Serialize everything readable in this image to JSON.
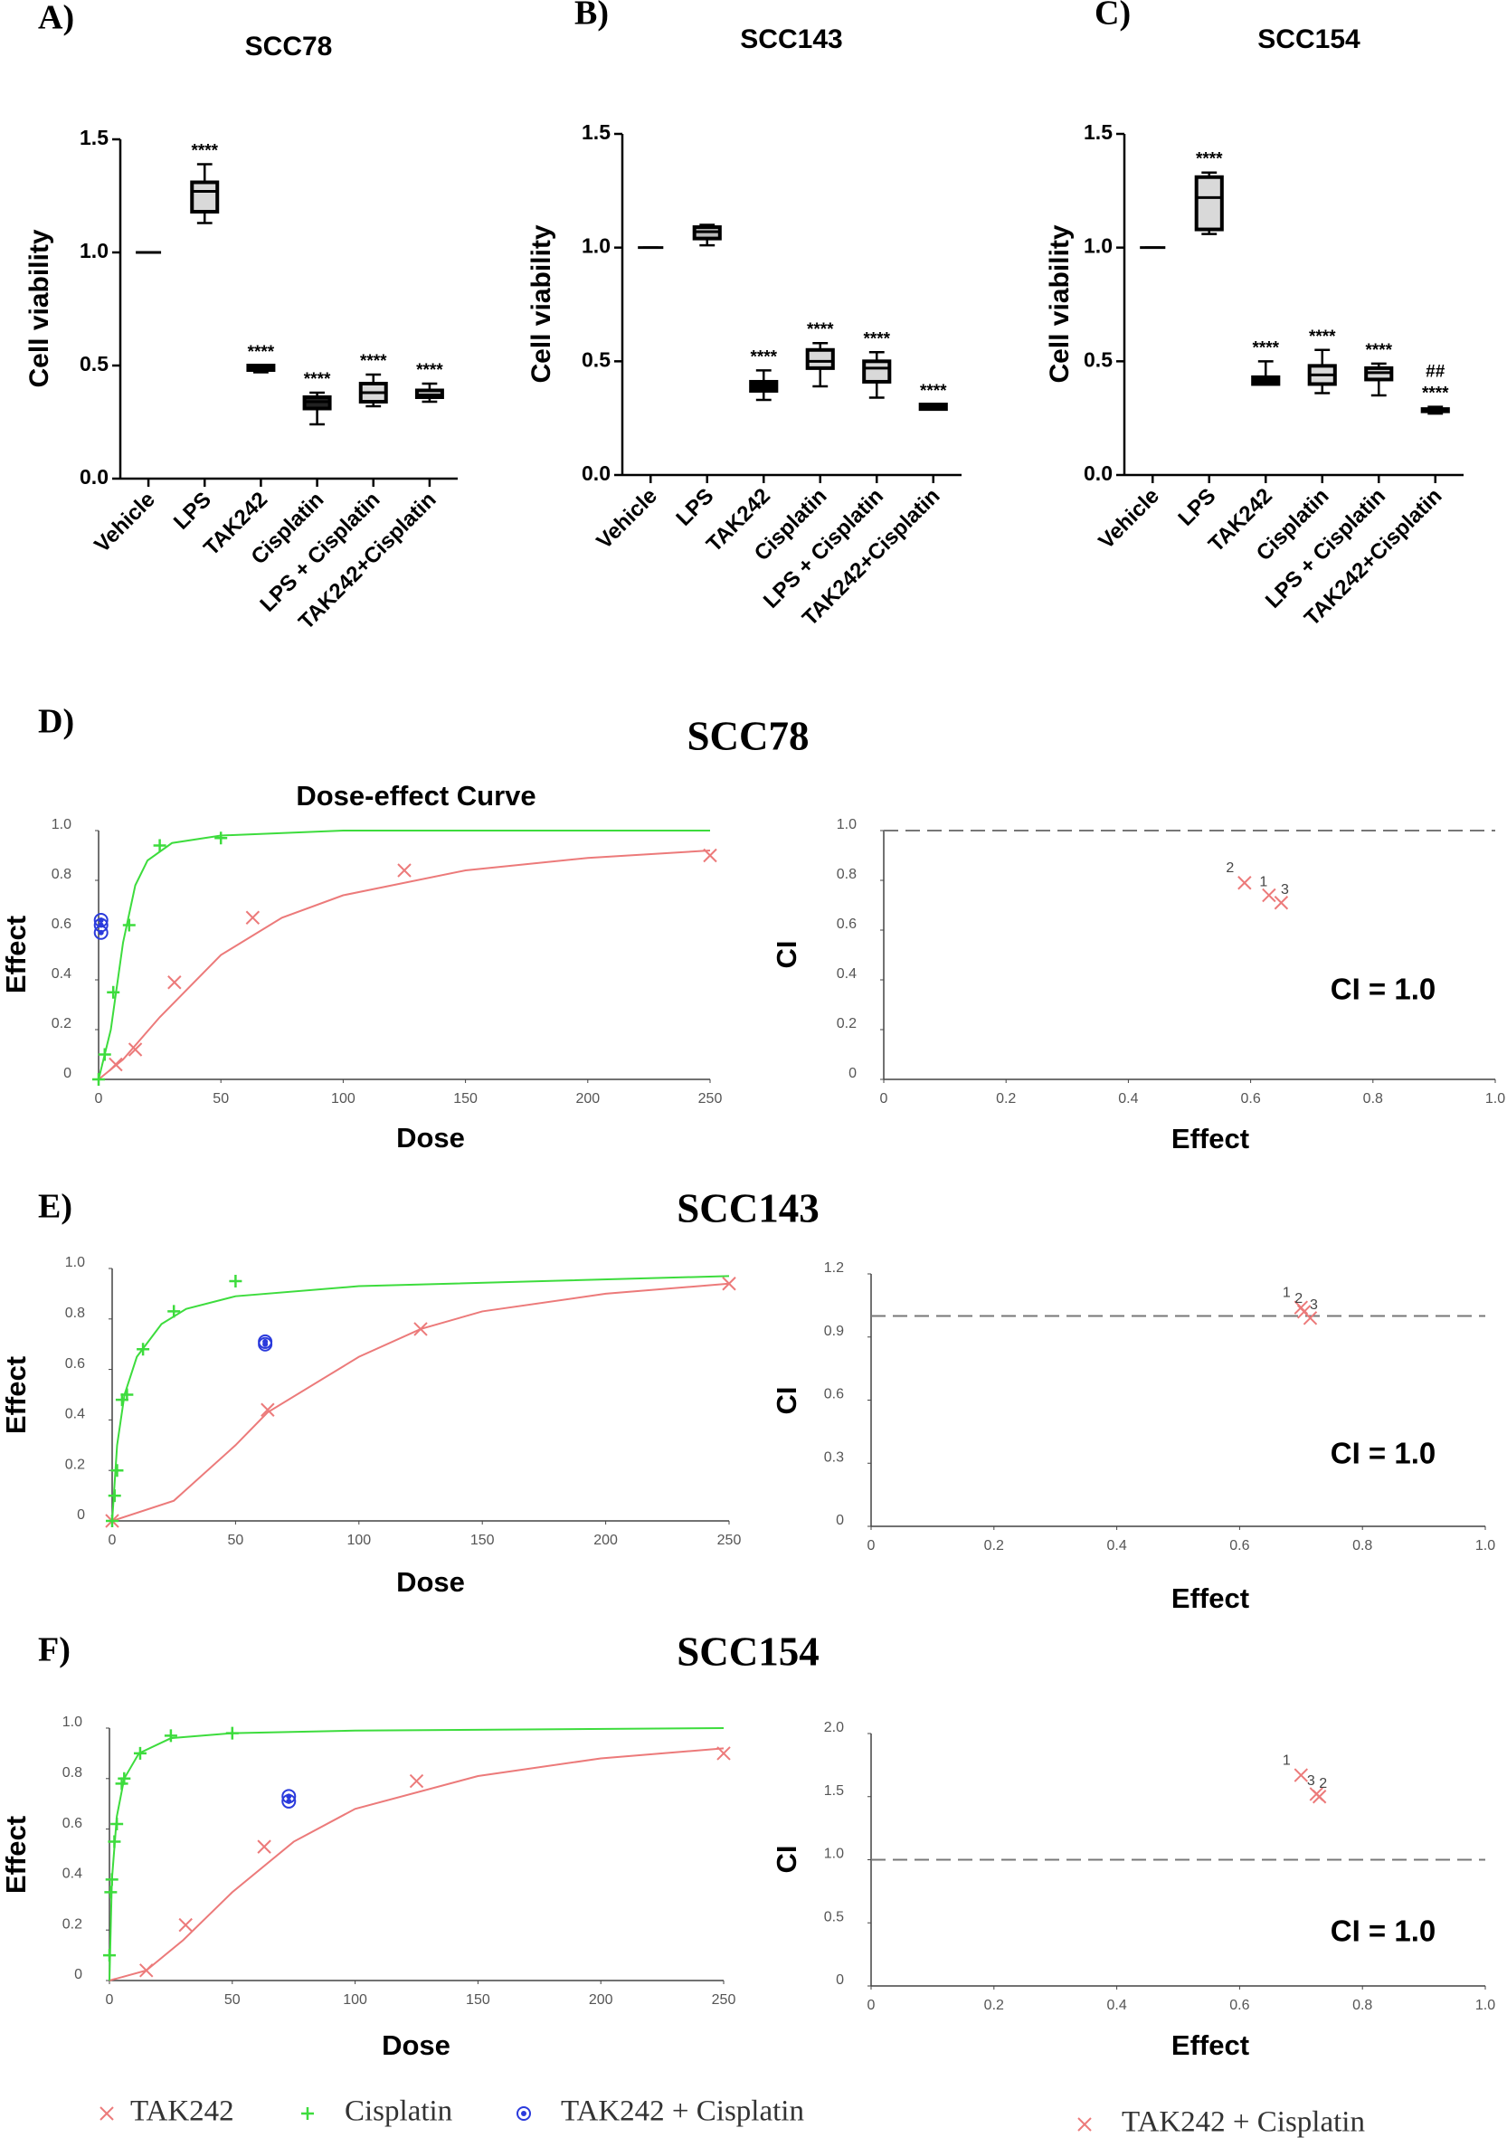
{
  "chart_data": [
    {
      "type": "box",
      "panel": "A)",
      "title": "SCC78",
      "y_label": "Cell viability",
      "categories": [
        "Vehicle",
        "LPS",
        "TAK242",
        "Cisplatin",
        "LPS + Cisplatin",
        "TAK242+Cisplatin"
      ],
      "min": [
        1.0,
        1.13,
        0.47,
        0.24,
        0.32,
        0.34
      ],
      "q1": [
        1.0,
        1.18,
        0.48,
        0.31,
        0.34,
        0.36
      ],
      "median": [
        1.0,
        1.27,
        0.49,
        0.34,
        0.38,
        0.37
      ],
      "q3": [
        1.0,
        1.31,
        0.5,
        0.36,
        0.42,
        0.39
      ],
      "max": [
        1.0,
        1.39,
        0.5,
        0.38,
        0.46,
        0.42
      ],
      "colors": [
        "#000000",
        "#d9d9d9",
        "#000000",
        "#222222",
        "#d9d9d9",
        "#d9d9d9"
      ],
      "annotations": [
        null,
        [
          "****"
        ],
        [
          "****"
        ],
        [
          "****"
        ],
        [
          "****"
        ],
        [
          "****"
        ]
      ],
      "ylim": [
        0,
        1.5
      ],
      "yticks": [
        {
          "value": 0,
          "label": "0.0"
        },
        0.5,
        {
          "value": 1,
          "label": "1.0"
        },
        1.5
      ]
    },
    {
      "type": "box",
      "panel": "B)",
      "title": "SCC143",
      "y_label": "Cell viability",
      "categories": [
        "Vehicle",
        "LPS",
        "TAK242",
        "Cisplatin",
        "LPS + Cisplatin",
        "TAK242+Cisplatin"
      ],
      "min": [
        1.0,
        1.01,
        0.33,
        0.39,
        0.34,
        0.29
      ],
      "q1": [
        1.0,
        1.04,
        0.37,
        0.47,
        0.41,
        0.29
      ],
      "median": [
        1.0,
        1.07,
        0.4,
        0.5,
        0.47,
        0.3
      ],
      "q3": [
        1.0,
        1.09,
        0.41,
        0.55,
        0.5,
        0.31
      ],
      "max": [
        1.0,
        1.1,
        0.46,
        0.58,
        0.54,
        0.31
      ],
      "colors": [
        "#000000",
        "#bbbbbb",
        "#000000",
        "#d9d9d9",
        "#d9d9d9",
        "#000000"
      ],
      "annotations": [
        null,
        null,
        [
          "****"
        ],
        [
          "****"
        ],
        [
          "****"
        ],
        [
          "****"
        ]
      ],
      "ylim": [
        0,
        1.5
      ],
      "yticks": [
        {
          "value": 0,
          "label": "0.0"
        },
        0.5,
        {
          "value": 1,
          "label": "1.0"
        },
        1.5
      ]
    },
    {
      "type": "box",
      "panel": "C)",
      "title": "SCC154",
      "y_label": "Cell viability",
      "categories": [
        "Vehicle",
        "LPS",
        "TAK242",
        "Cisplatin",
        "LPS + Cisplatin",
        "TAK242+Cisplatin"
      ],
      "min": [
        1.0,
        1.06,
        0.4,
        0.36,
        0.35,
        0.27
      ],
      "q1": [
        1.0,
        1.08,
        0.4,
        0.4,
        0.42,
        0.28
      ],
      "median": [
        1.0,
        1.22,
        0.42,
        0.44,
        0.45,
        0.28
      ],
      "q3": [
        1.0,
        1.31,
        0.43,
        0.48,
        0.47,
        0.29
      ],
      "max": [
        1.0,
        1.33,
        0.5,
        0.55,
        0.49,
        0.3
      ],
      "colors": [
        "#000000",
        "#d9d9d9",
        "#000000",
        "#d9d9d9",
        "#d9d9d9",
        "#000000"
      ],
      "annotations": [
        null,
        [
          "****"
        ],
        [
          "****"
        ],
        [
          "****"
        ],
        [
          "****"
        ],
        [
          "##",
          "****"
        ]
      ],
      "ylim": [
        0,
        1.5
      ],
      "yticks": [
        {
          "value": 0,
          "label": "0.0"
        },
        0.5,
        {
          "value": 1,
          "label": "1.0"
        },
        1.5
      ]
    },
    {
      "type": "scatter",
      "panel": "D)",
      "section": "SCC78",
      "title": "Dose-effect Curve",
      "x_label": "Dose",
      "y_label": "Effect",
      "xlim": [
        0,
        250
      ],
      "xticks": [
        0,
        50,
        100,
        150,
        200,
        250
      ],
      "ylim": [
        0,
        1
      ],
      "yticks": [
        0,
        0.2,
        0.4,
        0.6,
        0.8,
        {
          "value": 1,
          "label": "1.0"
        }
      ],
      "series": [
        {
          "color": "#ec7a7a",
          "marker": "x",
          "x": [
            7,
            15,
            31,
            63,
            125,
            250
          ],
          "values": [
            0.06,
            0.12,
            0.39,
            0.65,
            0.84,
            0.9
          ],
          "fit": {
            "x": [
              0,
              10,
              25,
              50,
              75,
              100,
              150,
              200,
              250
            ],
            "values": [
              0,
              0.08,
              0.25,
              0.5,
              0.65,
              0.74,
              0.84,
              0.89,
              0.92
            ]
          }
        },
        {
          "color": "#3ddc3d",
          "marker": "plus",
          "x": [
            0,
            2.5,
            6,
            12.5,
            25,
            50
          ],
          "values": [
            0,
            0.1,
            0.35,
            0.62,
            0.94,
            0.97
          ],
          "fit": {
            "x": [
              0,
              5,
              10,
              15,
              20,
              30,
              50,
              100,
              250
            ],
            "values": [
              0,
              0.2,
              0.55,
              0.78,
              0.88,
              0.95,
              0.98,
              1,
              1
            ]
          }
        },
        {
          "color": "#2a3adc",
          "marker": "circle",
          "x": [
            1,
            1,
            1
          ],
          "values": [
            0.59,
            0.62,
            0.64
          ]
        }
      ]
    },
    {
      "type": "scatter",
      "x_label": "Effect",
      "y_label": "CI",
      "annotation": "CI = 1.0",
      "refline": 1,
      "xlim": [
        0,
        1
      ],
      "xticks": [
        0,
        0.2,
        0.4,
        0.6,
        0.8,
        {
          "value": 1,
          "label": "1.0"
        }
      ],
      "ylim": [
        0,
        1
      ],
      "yticks": [
        0,
        0.2,
        0.4,
        0.6,
        0.8,
        {
          "value": 1,
          "label": "1.0"
        }
      ],
      "series": [
        {
          "color": "#ec7a7a",
          "marker": "x",
          "x": [
            0.59,
            0.63,
            0.65
          ],
          "values": [
            0.79,
            0.74,
            0.71
          ],
          "point_labels": [
            2,
            1,
            3
          ]
        }
      ]
    },
    {
      "type": "scatter",
      "panel": "E)",
      "section": "SCC143",
      "x_label": "Dose",
      "y_label": "Effect",
      "xlim": [
        0,
        250
      ],
      "xticks": [
        0,
        50,
        100,
        150,
        200,
        250
      ],
      "ylim": [
        0,
        1
      ],
      "yticks": [
        0,
        0.2,
        0.4,
        0.6,
        0.8,
        {
          "value": 1,
          "label": "1.0"
        }
      ],
      "series": [
        {
          "color": "#ec7a7a",
          "marker": "x",
          "x": [
            0,
            63,
            125,
            250
          ],
          "values": [
            0,
            0.44,
            0.76,
            0.94
          ],
          "fit": {
            "x": [
              0,
              25,
              50,
              63,
              100,
              125,
              150,
              200,
              250
            ],
            "values": [
              0,
              0.08,
              0.3,
              0.43,
              0.65,
              0.76,
              0.83,
              0.9,
              0.94
            ]
          }
        },
        {
          "color": "#3ddc3d",
          "marker": "plus",
          "x": [
            0,
            1,
            2,
            4,
            6,
            12.5,
            25,
            50
          ],
          "values": [
            0,
            0.1,
            0.2,
            0.48,
            0.5,
            0.68,
            0.83,
            0.95
          ],
          "fit": {
            "x": [
              0,
              2,
              5,
              10,
              20,
              30,
              50,
              100,
              250
            ],
            "values": [
              0,
              0.3,
              0.5,
              0.65,
              0.78,
              0.84,
              0.89,
              0.93,
              0.97
            ]
          }
        },
        {
          "color": "#2a3adc",
          "marker": "circle",
          "x": [
            62,
            62
          ],
          "values": [
            0.7,
            0.71
          ]
        }
      ]
    },
    {
      "type": "scatter",
      "x_label": "Effect",
      "y_label": "CI",
      "annotation": "CI = 1.0",
      "refline": 1,
      "xlim": [
        0,
        1
      ],
      "xticks": [
        0,
        0.2,
        0.4,
        0.6,
        0.8,
        {
          "value": 1,
          "label": "1.0"
        }
      ],
      "ylim": [
        0,
        1.2
      ],
      "yticks": [
        0,
        0.3,
        0.6,
        0.9,
        1.2
      ],
      "series": [
        {
          "color": "#ec7a7a",
          "marker": "x",
          "x": [
            0.7,
            0.705,
            0.715
          ],
          "values": [
            1.04,
            1.02,
            0.99
          ],
          "point_labels": [
            1,
            2,
            3
          ]
        }
      ]
    },
    {
      "type": "scatter",
      "panel": "F)",
      "section": "SCC154",
      "x_label": "Dose",
      "y_label": "Effect",
      "xlim": [
        0,
        250
      ],
      "xticks": [
        0,
        50,
        100,
        150,
        200,
        250
      ],
      "ylim": [
        0,
        1
      ],
      "yticks": [
        0,
        0.2,
        0.4,
        0.6,
        0.8,
        {
          "value": 1,
          "label": "1.0"
        }
      ],
      "series": [
        {
          "name": "TAK242",
          "color": "#ec7a7a",
          "marker": "x",
          "x": [
            15,
            31,
            63,
            125,
            250
          ],
          "values": [
            0.04,
            0.22,
            0.53,
            0.79,
            0.9
          ],
          "fit": {
            "x": [
              0,
              15,
              30,
              50,
              75,
              100,
              150,
              200,
              250
            ],
            "values": [
              0,
              0.04,
              0.16,
              0.35,
              0.55,
              0.68,
              0.81,
              0.88,
              0.92
            ]
          }
        },
        {
          "name": "Cisplatin",
          "color": "#3ddc3d",
          "marker": "plus",
          "x": [
            0,
            0.5,
            1,
            2,
            3,
            5,
            6,
            12.5,
            25,
            50
          ],
          "values": [
            0.1,
            0.35,
            0.4,
            0.55,
            0.62,
            0.78,
            0.8,
            0.9,
            0.97,
            0.98
          ],
          "fit": {
            "x": [
              0,
              1,
              3,
              6,
              12,
              25,
              50,
              100,
              250
            ],
            "values": [
              0,
              0.4,
              0.65,
              0.8,
              0.9,
              0.96,
              0.98,
              0.99,
              1
            ]
          }
        },
        {
          "name": "TAK242 + Cisplatin",
          "color": "#2a3adc",
          "marker": "circle",
          "x": [
            73,
            73
          ],
          "values": [
            0.71,
            0.73
          ]
        }
      ]
    },
    {
      "type": "scatter",
      "x_label": "Effect",
      "y_label": "CI",
      "annotation": "CI = 1.0",
      "refline": 1,
      "xlim": [
        0,
        1
      ],
      "xticks": [
        0,
        0.2,
        0.4,
        0.6,
        0.8,
        {
          "value": 1,
          "label": "1.0"
        }
      ],
      "ylim": [
        0,
        2
      ],
      "yticks": [
        0,
        0.5,
        {
          "value": 1,
          "label": "1.0"
        },
        1.5,
        {
          "value": 2,
          "label": "2.0"
        }
      ],
      "series": [
        {
          "name": "TAK242 + Cisplatin",
          "color": "#ec7a7a",
          "marker": "x",
          "x": [
            0.7,
            0.725,
            0.73
          ],
          "values": [
            1.67,
            1.52,
            1.5
          ],
          "point_labels": [
            1,
            3,
            2
          ]
        }
      ]
    }
  ]
}
